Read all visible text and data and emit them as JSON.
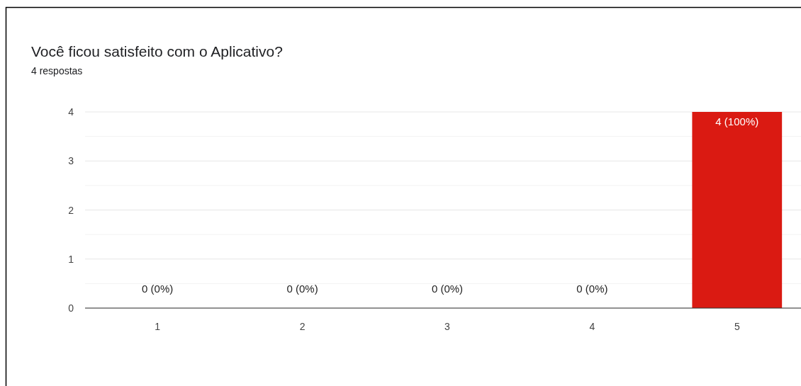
{
  "chart_data": {
    "type": "bar",
    "title": "Você ficou satisfeito com o Aplicativo?",
    "subtitle": "4 respostas",
    "categories": [
      "1",
      "2",
      "3",
      "4",
      "5"
    ],
    "values": [
      0,
      0,
      0,
      0,
      4
    ],
    "value_labels": [
      "0 (0%)",
      "0 (0%)",
      "0 (0%)",
      "0 (0%)",
      "4 (100%)"
    ],
    "color": "#da1a12",
    "ylim": [
      0,
      4
    ],
    "yticks": [
      0,
      {
        "value": 0.5,
        "label": null
      },
      1,
      {
        "value": 1.5,
        "label": null
      },
      2,
      {
        "value": 2.5,
        "label": null
      },
      3,
      {
        "value": 3.5,
        "label": null
      },
      4
    ],
    "grid": true
  }
}
